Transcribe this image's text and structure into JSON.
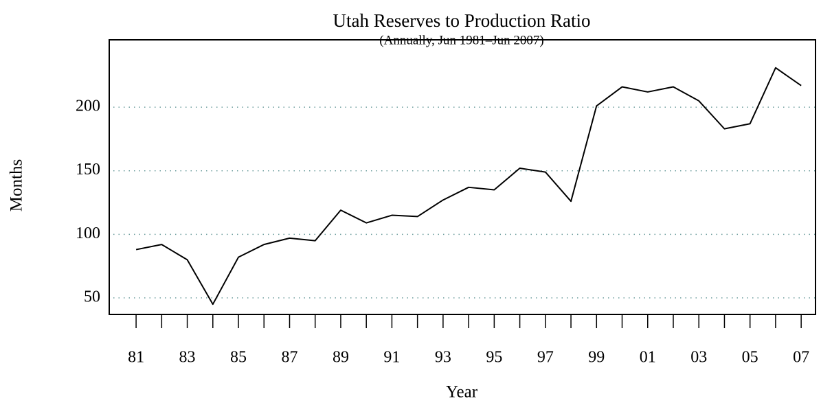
{
  "chart_data": {
    "type": "line",
    "title": "Utah Reserves to Production Ratio",
    "subtitle": "(Annually, Jun 1981–Jun 2007)",
    "x_label": "Year",
    "y_label": "Months",
    "x": [
      1981,
      1982,
      1983,
      1984,
      1985,
      1986,
      1987,
      1988,
      1989,
      1990,
      1991,
      1992,
      1993,
      1994,
      1995,
      1996,
      1997,
      1998,
      1999,
      2000,
      2001,
      2002,
      2003,
      2004,
      2005,
      2006,
      2007
    ],
    "series": [
      {
        "name": "Utah",
        "color": "#000000",
        "values": [
          88,
          92,
          80,
          45,
          82,
          92,
          97,
          95,
          119,
          109,
          115,
          114,
          127,
          137,
          135,
          152,
          149,
          126,
          201,
          216,
          212,
          216,
          205,
          183,
          187,
          231,
          217
        ]
      }
    ],
    "xlim": [
      1979.95,
      2007.56
    ],
    "ylim": [
      37,
      253
    ],
    "xticks": [
      {
        "value": 1981,
        "label": "81"
      },
      {
        "value": 1983,
        "label": "83"
      },
      {
        "value": 1985,
        "label": "85"
      },
      {
        "value": 1987,
        "label": "87"
      },
      {
        "value": 1989,
        "label": "89"
      },
      {
        "value": 1991,
        "label": "91"
      },
      {
        "value": 1993,
        "label": "93"
      },
      {
        "value": 1995,
        "label": "95"
      },
      {
        "value": 1997,
        "label": "97"
      },
      {
        "value": 1999,
        "label": "99"
      },
      {
        "value": 2001,
        "label": "01"
      },
      {
        "value": 2003,
        "label": "03"
      },
      {
        "value": 2005,
        "label": "05"
      },
      {
        "value": 2007,
        "label": "07"
      }
    ],
    "xminor_ticks": [
      1982,
      1984,
      1986,
      1988,
      1990,
      1992,
      1994,
      1996,
      1998,
      2000,
      2002,
      2004,
      2006
    ],
    "yticks": [
      50,
      100,
      150,
      200
    ],
    "grid": true,
    "grid_color": "#6e9e9e"
  }
}
